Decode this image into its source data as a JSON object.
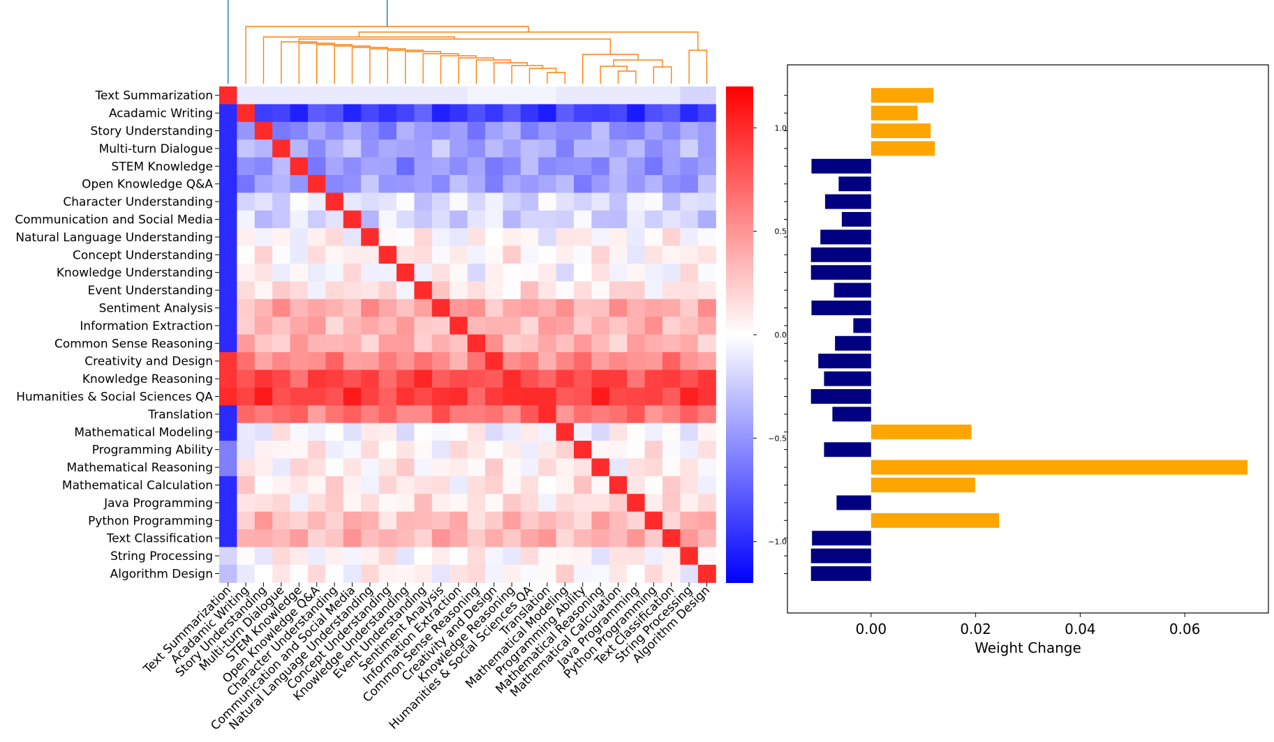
{
  "chart_data": [
    {
      "type": "heatmap",
      "title": "",
      "labels": [
        "Text Summarization",
        "Acadamic Writing",
        "Story Understanding",
        "Multi-turn Dialogue",
        "STEM Knowledge",
        "Open Knowledge Q&A",
        "Character Understanding",
        "Communication and Social Media",
        "Natural Language Understanding",
        "Concept Understanding",
        "Knowledge Understanding",
        "Event Understanding",
        "Sentiment Analysis",
        "Information Extraction",
        "Common Sense Reasoning",
        "Creativity and Design",
        "Knowledge Reasoning",
        "Humanities & Social Sciences QA",
        "Translation",
        "Mathematical Modeling",
        "Programming Ability",
        "Mathematical Reasoning",
        "Mathematical Calculation",
        "Java Programming",
        "Python Programming",
        "Text Classification",
        "String Processing",
        "Algorithm Design"
      ],
      "first_col": [
        1.0,
        -1.0,
        -1.0,
        -1.0,
        -1.0,
        -1.0,
        -1.0,
        -1.0,
        -1.0,
        -1.0,
        -1.0,
        -1.0,
        -1.0,
        -1.0,
        -1.0,
        0.95,
        0.95,
        1.0,
        -1.0,
        -1.0,
        -0.6,
        -0.6,
        -1.0,
        -1.0,
        -1.0,
        -1.0,
        -0.2,
        -0.3
      ],
      "first_row": [
        1.0,
        -0.1,
        -0.1,
        -0.1,
        -0.1,
        -0.1,
        -0.1,
        -0.1,
        -0.1,
        -0.1,
        -0.1,
        -0.1,
        -0.1,
        -0.1,
        -0.05,
        -0.05,
        -0.05,
        -0.05,
        -0.05,
        -0.1,
        -0.1,
        -0.1,
        -0.1,
        -0.1,
        -0.1,
        -0.1,
        -0.2,
        -0.2
      ],
      "row_means": [
        0,
        -0.9,
        -0.5,
        -0.4,
        -0.5,
        -0.45,
        -0.15,
        -0.2,
        0.02,
        0.05,
        0.0,
        0.12,
        0.4,
        0.35,
        0.35,
        0.55,
        0.85,
        0.9,
        0.65,
        -0.02,
        0.05,
        0.08,
        0.1,
        0.12,
        0.3,
        0.35,
        0.03,
        0.05
      ],
      "colorbar": {
        "ticks": [
          1.0,
          0.5,
          0.0,
          -0.5,
          -1.0
        ],
        "tick_labels": [
          "1.0",
          "0.5",
          "0.0",
          "−0.5",
          "−1.0"
        ],
        "range": [
          -1.2,
          1.2
        ],
        "colors": {
          "low": "#0000ff",
          "mid": "#ffffff",
          "high": "#ff0000"
        }
      },
      "dendrogram": {
        "colors": {
          "root": "#1f77b4",
          "cluster": "#ff7f0e"
        }
      }
    },
    {
      "type": "bar",
      "orientation": "horizontal",
      "xlabel": "Weight Change",
      "ylabel": "",
      "xlim": [
        -0.016,
        0.076
      ],
      "xticks": [
        0.0,
        0.02,
        0.04,
        0.06
      ],
      "xtick_labels": [
        "0.00",
        "0.02",
        "0.04",
        "0.06"
      ],
      "categories": [
        "Text Summarization",
        "Acadamic Writing",
        "Story Understanding",
        "Multi-turn Dialogue",
        "STEM Knowledge",
        "Open Knowledge Q&A",
        "Character Understanding",
        "Communication and Social Media",
        "Natural Language Understanding",
        "Concept Understanding",
        "Knowledge Understanding",
        "Event Understanding",
        "Sentiment Analysis",
        "Information Extraction",
        "Common Sense Reasoning",
        "Creativity and Design",
        "Knowledge Reasoning",
        "Humanities & Social Sciences QA",
        "Translation",
        "Mathematical Modeling",
        "Programming Ability",
        "Mathematical Reasoning",
        "Mathematical Calculation",
        "Java Programming",
        "Python Programming",
        "Text Classification",
        "String Processing",
        "Algorithm Design"
      ],
      "values": [
        0.0119,
        0.0089,
        0.0114,
        0.0122,
        -0.0114,
        -0.0062,
        -0.0088,
        -0.0056,
        -0.0097,
        -0.0115,
        -0.0115,
        -0.0071,
        -0.0114,
        -0.0034,
        -0.0069,
        -0.0101,
        -0.009,
        -0.0115,
        -0.0074,
        0.0192,
        -0.009,
        0.072,
        0.0199,
        -0.0066,
        0.0245,
        -0.0113,
        -0.0115,
        -0.0115
      ],
      "colors": {
        "positive": "#ffa500",
        "negative": "#000080"
      }
    }
  ]
}
